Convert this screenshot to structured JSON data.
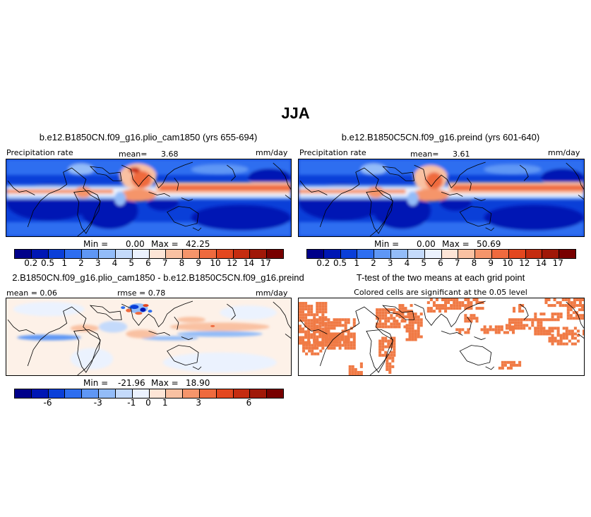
{
  "figure_title": "JJA",
  "panels": {
    "p1": {
      "title": "b.e12.B1850CN.f09_g16.plio_cam1850 (yrs 655-694)",
      "left_label": "Precipitation rate",
      "mean_label": "mean=",
      "mean_value": "3.68",
      "units": "mm/day",
      "min_label": "Min =",
      "min_value": "0.00",
      "max_label": "Max =",
      "max_value": "42.25"
    },
    "p2": {
      "title": "b.e12.B1850C5CN.f09_g16.preind (yrs 601-640)",
      "left_label": "Precipitation rate",
      "mean_label": "mean=",
      "mean_value": "3.61",
      "units": "mm/day",
      "min_label": "Min =",
      "min_value": "0.00",
      "max_label": "Max =",
      "max_value": "50.69"
    },
    "p3": {
      "title": "2.B1850CN.f09_g16.plio_cam1850 - b.e12.B1850C5CN.f09_g16.preind",
      "mean_text": "mean =  0.06",
      "rmse_text": "rmse =   0.78",
      "units": "mm/day",
      "min_label": "Min =",
      "min_value": "-21.96",
      "max_label": "Max =",
      "max_value": "18.90"
    },
    "p4": {
      "title": "T-test of the two means at each grid point",
      "subtitle": "Colored cells are significant at the 0.05 level",
      "sig_color": "#f07a45"
    }
  },
  "colorbars": {
    "precip": {
      "colors": [
        "#00008a",
        "#0017b4",
        "#0a3fd8",
        "#2e6ef0",
        "#5f97f5",
        "#93bcf8",
        "#c4dafb",
        "#ebf2fe",
        "#fde5d6",
        "#f9c1a2",
        "#f5956b",
        "#ef6a3e",
        "#e3471f",
        "#c52c10",
        "#a01808",
        "#780000"
      ],
      "ticks": [
        "0.2",
        "0.5",
        "1",
        "2",
        "3",
        "4",
        "5",
        "6",
        "7",
        "8",
        "9",
        "10",
        "12",
        "14",
        "17"
      ]
    },
    "diff": {
      "colors": [
        "#00008a",
        "#0017b4",
        "#0a3fd8",
        "#2e6ef0",
        "#5f97f5",
        "#93bcf8",
        "#c4dafb",
        "#ebf2fe",
        "#fde5d6",
        "#f9c1a2",
        "#f5956b",
        "#ef6a3e",
        "#e3471f",
        "#c52c10",
        "#a01808",
        "#780000"
      ],
      "ticks": [
        "-6",
        "-3",
        "-1",
        "0",
        "1",
        "3",
        "6"
      ],
      "tick_boundaries": [
        2,
        5,
        7,
        8,
        9,
        11,
        14
      ]
    }
  }
}
